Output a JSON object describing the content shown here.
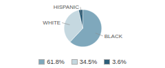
{
  "chart_data": {
    "type": "pie",
    "categories": [
      "BLACK",
      "WHITE",
      "HISPANIC"
    ],
    "values": [
      61.8,
      34.5,
      3.6
    ],
    "value_labels": [
      "61.8%",
      "34.5%",
      "3.6%"
    ],
    "colors": [
      "#7fa8bc",
      "#c5d8e0",
      "#2e5f7a"
    ],
    "legend": "bottom"
  }
}
